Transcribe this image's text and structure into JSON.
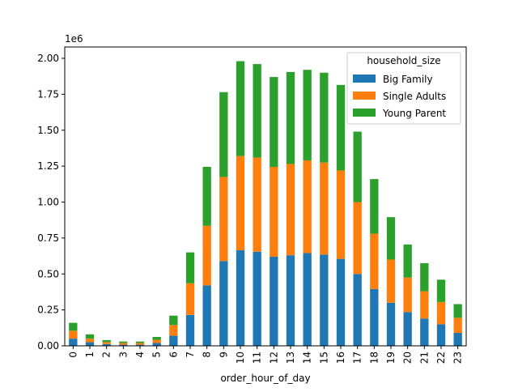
{
  "chart_data": {
    "type": "bar",
    "stacked": true,
    "x_label": "order_hour_of_day",
    "y_label": "",
    "y_scale_label": "1e6",
    "ylim": [
      0,
      2.0
    ],
    "yticks": [
      "0.00",
      "0.25",
      "0.50",
      "0.75",
      "1.00",
      "1.25",
      "1.50",
      "1.75",
      "2.00"
    ],
    "categories": [
      "0",
      "1",
      "2",
      "3",
      "4",
      "5",
      "6",
      "7",
      "8",
      "9",
      "10",
      "11",
      "12",
      "13",
      "14",
      "15",
      "16",
      "17",
      "18",
      "19",
      "20",
      "21",
      "22",
      "23"
    ],
    "legend": {
      "title": "household_size",
      "position": "top-right"
    },
    "series": [
      {
        "name": "Big Family",
        "color": "#1f77b4",
        "values": [
          0.05,
          0.025,
          0.012,
          0.008,
          0.008,
          0.02,
          0.07,
          0.215,
          0.42,
          0.59,
          0.665,
          0.655,
          0.62,
          0.63,
          0.645,
          0.635,
          0.605,
          0.5,
          0.395,
          0.3,
          0.235,
          0.19,
          0.15,
          0.09
        ]
      },
      {
        "name": "Single Adults",
        "color": "#ff7f0e",
        "values": [
          0.055,
          0.025,
          0.014,
          0.012,
          0.012,
          0.022,
          0.075,
          0.22,
          0.415,
          0.585,
          0.655,
          0.655,
          0.625,
          0.635,
          0.645,
          0.64,
          0.615,
          0.5,
          0.385,
          0.3,
          0.24,
          0.19,
          0.155,
          0.105
        ]
      },
      {
        "name": "Young Parent",
        "color": "#2ca02c",
        "values": [
          0.055,
          0.03,
          0.014,
          0.01,
          0.01,
          0.02,
          0.065,
          0.215,
          0.41,
          0.59,
          0.66,
          0.65,
          0.625,
          0.64,
          0.63,
          0.625,
          0.595,
          0.49,
          0.38,
          0.295,
          0.23,
          0.195,
          0.155,
          0.095
        ]
      }
    ]
  }
}
